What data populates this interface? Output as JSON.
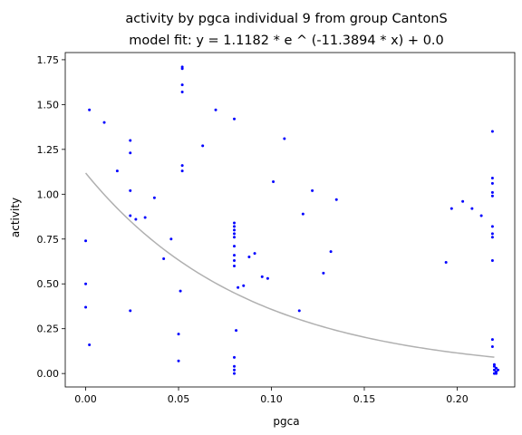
{
  "chart_data": {
    "type": "scatter",
    "title": "activity by pgca individual 9 from group CantonS",
    "subtitle": "model fit: y = 1.1182 * e ^ (-11.3894 * x) + 0.0",
    "xlabel": "pgca",
    "ylabel": "activity",
    "xlim": [
      -0.011,
      0.231
    ],
    "ylim": [
      -0.075,
      1.79
    ],
    "xticks": [
      0.0,
      0.05,
      0.1,
      0.15,
      0.2
    ],
    "xtick_labels": [
      "0.00",
      "0.05",
      "0.10",
      "0.15",
      "0.20"
    ],
    "yticks": [
      0.0,
      0.25,
      0.5,
      0.75,
      1.0,
      1.25,
      1.5,
      1.75
    ],
    "ytick_labels": [
      "0.00",
      "0.25",
      "0.50",
      "0.75",
      "1.00",
      "1.25",
      "1.50",
      "1.75"
    ],
    "grid": false,
    "colors": {
      "points": "#0000ff",
      "fit_line": "#b0b0b0"
    },
    "fit": {
      "a": 1.1182,
      "b": -11.3894,
      "c": 0.0,
      "x_range": [
        0.0,
        0.22
      ]
    },
    "points": [
      [
        0.002,
        1.47
      ],
      [
        0.01,
        1.4
      ],
      [
        0.0,
        0.74
      ],
      [
        0.0,
        0.5
      ],
      [
        0.0,
        0.37
      ],
      [
        0.002,
        0.16
      ],
      [
        0.017,
        1.13
      ],
      [
        0.024,
        1.3
      ],
      [
        0.024,
        1.23
      ],
      [
        0.024,
        1.02
      ],
      [
        0.024,
        0.88
      ],
      [
        0.024,
        0.35
      ],
      [
        0.027,
        0.86
      ],
      [
        0.032,
        0.87
      ],
      [
        0.037,
        0.98
      ],
      [
        0.042,
        0.64
      ],
      [
        0.046,
        0.75
      ],
      [
        0.05,
        0.22
      ],
      [
        0.05,
        0.07
      ],
      [
        0.051,
        0.46
      ],
      [
        0.052,
        1.71
      ],
      [
        0.052,
        1.7
      ],
      [
        0.052,
        1.61
      ],
      [
        0.052,
        1.57
      ],
      [
        0.052,
        1.16
      ],
      [
        0.052,
        1.13
      ],
      [
        0.063,
        1.27
      ],
      [
        0.07,
        1.47
      ],
      [
        0.08,
        1.42
      ],
      [
        0.08,
        0.84
      ],
      [
        0.08,
        0.82
      ],
      [
        0.08,
        0.8
      ],
      [
        0.08,
        0.78
      ],
      [
        0.08,
        0.76
      ],
      [
        0.08,
        0.71
      ],
      [
        0.08,
        0.66
      ],
      [
        0.08,
        0.63
      ],
      [
        0.08,
        0.6
      ],
      [
        0.081,
        0.24
      ],
      [
        0.08,
        0.09
      ],
      [
        0.08,
        0.04
      ],
      [
        0.08,
        0.02
      ],
      [
        0.08,
        0.0
      ],
      [
        0.082,
        0.48
      ],
      [
        0.085,
        0.49
      ],
      [
        0.088,
        0.65
      ],
      [
        0.091,
        0.67
      ],
      [
        0.095,
        0.54
      ],
      [
        0.098,
        0.53
      ],
      [
        0.101,
        1.07
      ],
      [
        0.107,
        1.31
      ],
      [
        0.115,
        0.35
      ],
      [
        0.117,
        0.89
      ],
      [
        0.122,
        1.02
      ],
      [
        0.128,
        0.56
      ],
      [
        0.132,
        0.68
      ],
      [
        0.135,
        0.97
      ],
      [
        0.194,
        0.62
      ],
      [
        0.197,
        0.92
      ],
      [
        0.203,
        0.96
      ],
      [
        0.208,
        0.92
      ],
      [
        0.213,
        0.88
      ],
      [
        0.219,
        1.35
      ],
      [
        0.219,
        1.09
      ],
      [
        0.219,
        1.06
      ],
      [
        0.219,
        1.01
      ],
      [
        0.219,
        0.99
      ],
      [
        0.219,
        0.82
      ],
      [
        0.219,
        0.78
      ],
      [
        0.219,
        0.76
      ],
      [
        0.219,
        0.63
      ],
      [
        0.219,
        0.19
      ],
      [
        0.219,
        0.15
      ],
      [
        0.22,
        0.05
      ],
      [
        0.22,
        0.04
      ],
      [
        0.221,
        0.03
      ],
      [
        0.22,
        0.02
      ],
      [
        0.221,
        0.01
      ],
      [
        0.22,
        0.0
      ],
      [
        0.221,
        0.0
      ],
      [
        0.222,
        0.02
      ]
    ]
  }
}
